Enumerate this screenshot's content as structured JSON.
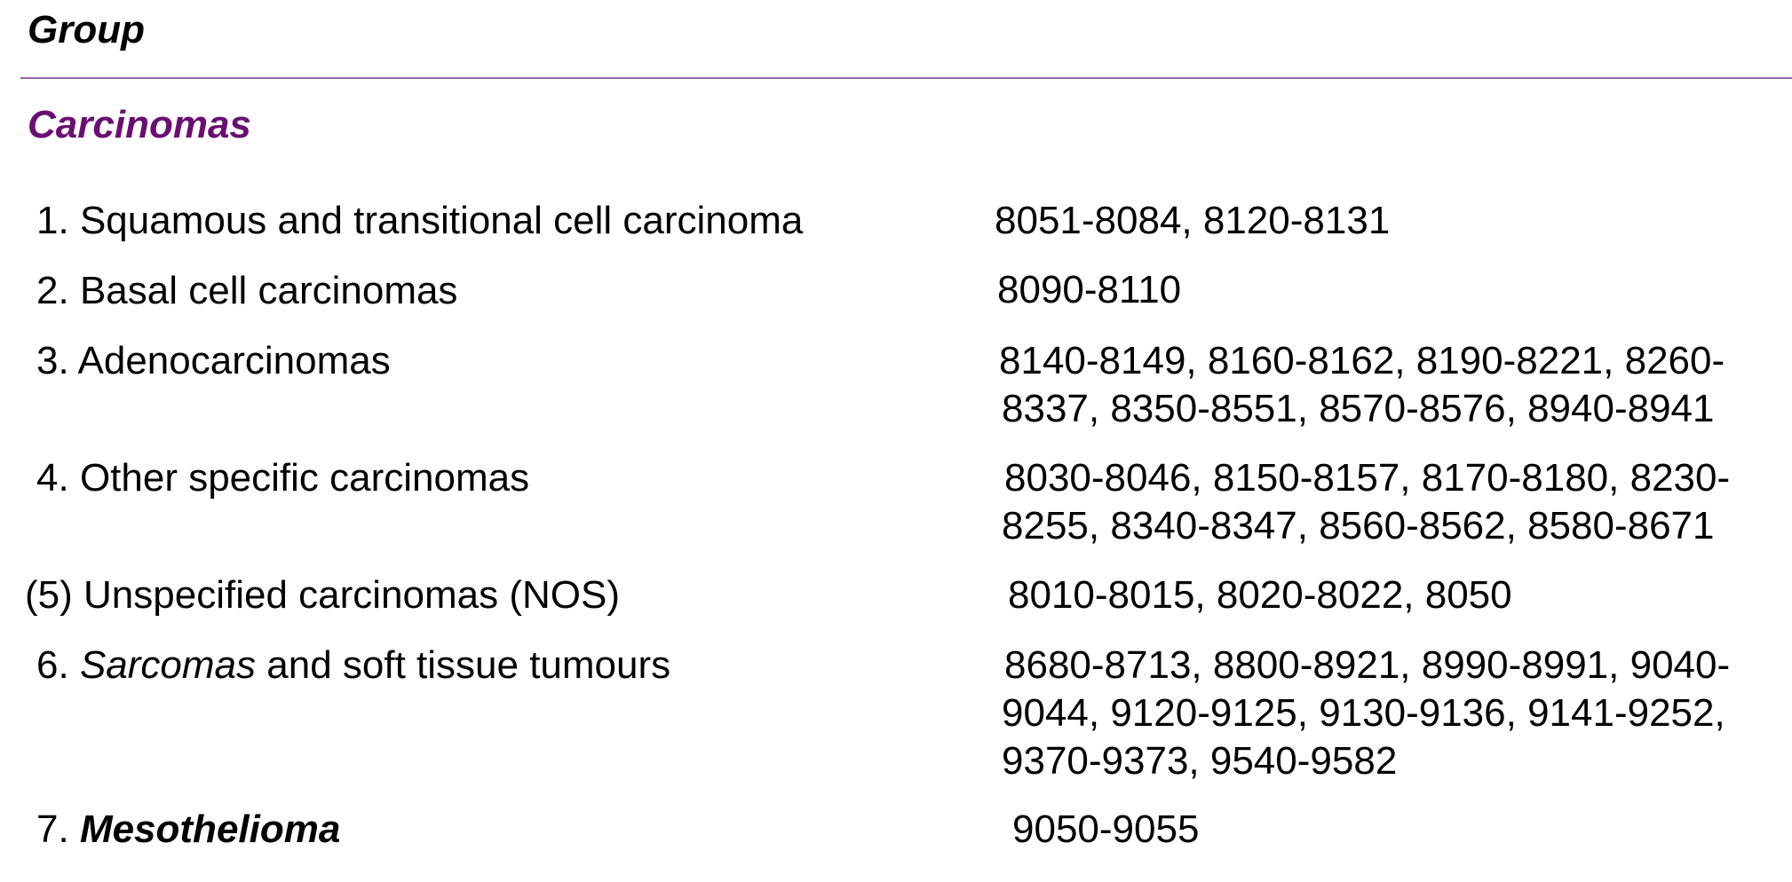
{
  "header": {
    "title": "Group"
  },
  "section": {
    "title": "Carcinomas",
    "color": "#6a0f72"
  },
  "rows": [
    {
      "num": "1.",
      "label": "Squamous and transitional cell carcinoma",
      "codes": [
        "8051-8084, 8120-8131"
      ]
    },
    {
      "num": "2.",
      "label": "Basal cell carcinomas",
      "codes": [
        "8090-8110"
      ]
    },
    {
      "num": "3.",
      "label": "Adenocarcinomas",
      "codes": [
        "8140-8149, 8160-8162, 8190-8221, 8260-",
        "8337,  8350-8551, 8570-8576, 8940-8941"
      ]
    },
    {
      "num": "4.",
      "label": "Other specific carcinomas",
      "codes": [
        "8030-8046, 8150-8157, 8170-8180, 8230-",
        "8255,  8340-8347, 8560-8562, 8580-8671"
      ]
    },
    {
      "num": "(5)",
      "label": "Unspecified carcinomas (NOS)",
      "codes": [
        "8010-8015, 8020-8022, 8050"
      ]
    },
    {
      "num": "6.",
      "label_emph": "Sarcomas",
      "label": "and soft tissue tumours",
      "codes": [
        "8680-8713, 8800-8921, 8990-8991, 9040-",
        "9044, 9120-9125, 9130-9136, 9141-9252,",
        "9370-9373, 9540-9582"
      ]
    },
    {
      "num": "7.",
      "label_emph": "Mesothelioma",
      "codes": [
        "9050-9055"
      ]
    }
  ]
}
